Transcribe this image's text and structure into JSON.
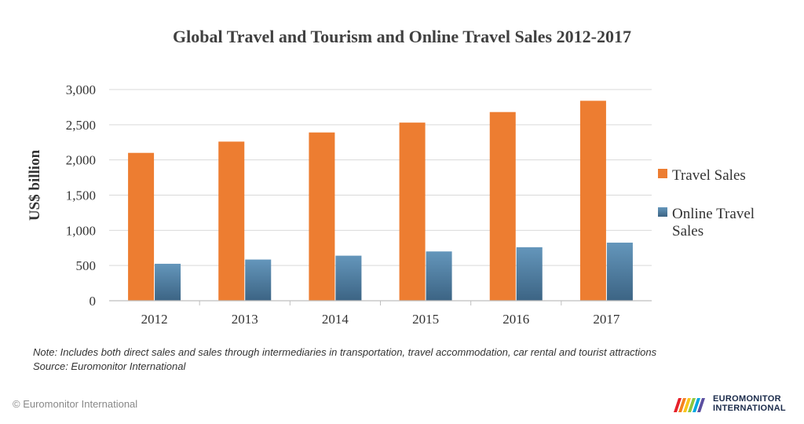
{
  "colors": {
    "travel_sales": "#ED7D31",
    "online_top": "#6496BB",
    "online_bottom": "#3C6484",
    "grid": "#D9D9D9",
    "axis": "#BFBFBF"
  },
  "chart_data": {
    "type": "bar",
    "title": "Global Travel and Tourism and Online Travel Sales 2012-2017",
    "xlabel": "",
    "ylabel": "US$ billion",
    "ylim": [
      0,
      3000
    ],
    "yticks": [
      "0",
      "500",
      "1,000",
      "1,500",
      "2,000",
      "2,500",
      "3,000"
    ],
    "grid": true,
    "legend_position": "right",
    "categories": [
      "2012",
      "2013",
      "2014",
      "2015",
      "2016",
      "2017"
    ],
    "series": [
      {
        "name": "Travel Sales",
        "values": [
          2100,
          2260,
          2390,
          2530,
          2680,
          2840
        ]
      },
      {
        "name": "Online Travel Sales",
        "values": [
          525,
          585,
          640,
          700,
          760,
          825
        ]
      }
    ]
  },
  "legend": {
    "travel_sales": "Travel Sales",
    "online_line1": "Online Travel",
    "online_line2": "Sales"
  },
  "note": {
    "line1": "Note: Includes both direct sales and sales through intermediaries in transportation, travel accommodation, car rental and tourist attractions",
    "line2": "Source: Euromonitor International"
  },
  "footer": {
    "copyright": "© Euromonitor International",
    "brand_line1": "EUROMONITOR",
    "brand_line2": "INTERNATIONAL"
  }
}
